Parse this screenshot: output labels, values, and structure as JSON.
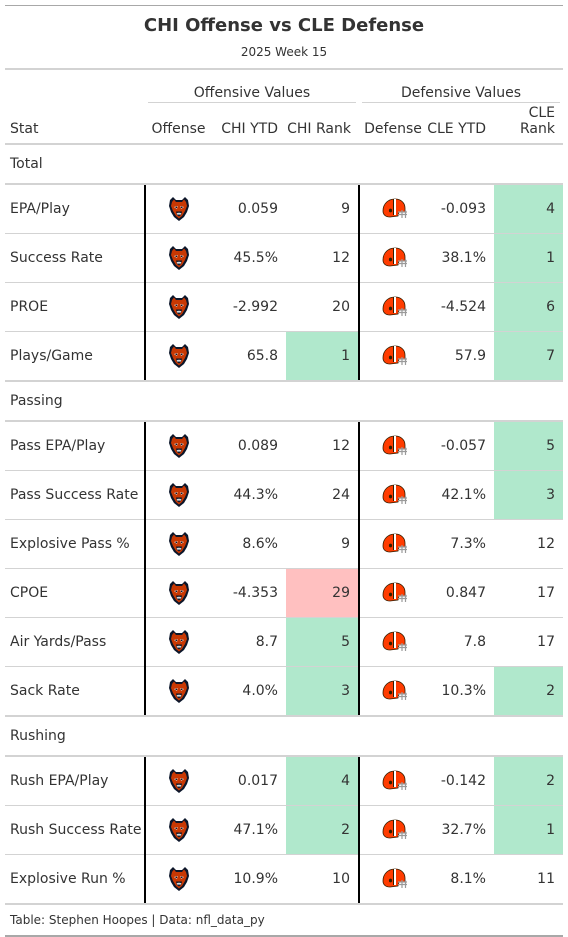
{
  "title": "CHI Offense vs CLE Defense",
  "subtitle": "2025 Week 15",
  "spanners": {
    "offense": "Offensive Values",
    "defense": "Defensive Values"
  },
  "columns": {
    "stat": "Stat",
    "offense": "Offense",
    "off_ytd": "CHI YTD",
    "off_rank": "CHI Rank",
    "defense": "Defense",
    "def_ytd": "CLE YTD",
    "def_rank": "CLE Rank"
  },
  "colors": {
    "good": "#b0e8cc",
    "bad": "#ffc0c0",
    "bears_orange": "#c83803",
    "bears_navy": "#0b162a",
    "browns_orange": "#ff3c00",
    "browns_brown": "#311d00"
  },
  "logos": {
    "offense": "chicago-bears-logo",
    "defense": "cleveland-browns-helmet-logo"
  },
  "groups": [
    {
      "label": "Total",
      "rows": [
        {
          "stat": "EPA/Play",
          "off_ytd": "0.059",
          "off_rank": "9",
          "off_hl": "",
          "def_ytd": "-0.093",
          "def_rank": "4",
          "def_hl": "good"
        },
        {
          "stat": "Success Rate",
          "off_ytd": "45.5%",
          "off_rank": "12",
          "off_hl": "",
          "def_ytd": "38.1%",
          "def_rank": "1",
          "def_hl": "good"
        },
        {
          "stat": "PROE",
          "off_ytd": "-2.992",
          "off_rank": "20",
          "off_hl": "",
          "def_ytd": "-4.524",
          "def_rank": "6",
          "def_hl": "good"
        },
        {
          "stat": "Plays/Game",
          "off_ytd": "65.8",
          "off_rank": "1",
          "off_hl": "good",
          "def_ytd": "57.9",
          "def_rank": "7",
          "def_hl": "good"
        }
      ]
    },
    {
      "label": "Passing",
      "rows": [
        {
          "stat": "Pass EPA/Play",
          "off_ytd": "0.089",
          "off_rank": "12",
          "off_hl": "",
          "def_ytd": "-0.057",
          "def_rank": "5",
          "def_hl": "good"
        },
        {
          "stat": "Pass Success Rate",
          "off_ytd": "44.3%",
          "off_rank": "24",
          "off_hl": "",
          "def_ytd": "42.1%",
          "def_rank": "3",
          "def_hl": "good"
        },
        {
          "stat": "Explosive Pass %",
          "off_ytd": "8.6%",
          "off_rank": "9",
          "off_hl": "",
          "def_ytd": "7.3%",
          "def_rank": "12",
          "def_hl": ""
        },
        {
          "stat": "CPOE",
          "off_ytd": "-4.353",
          "off_rank": "29",
          "off_hl": "bad",
          "def_ytd": "0.847",
          "def_rank": "17",
          "def_hl": ""
        },
        {
          "stat": "Air Yards/Pass",
          "off_ytd": "8.7",
          "off_rank": "5",
          "off_hl": "good",
          "def_ytd": "7.8",
          "def_rank": "17",
          "def_hl": ""
        },
        {
          "stat": "Sack Rate",
          "off_ytd": "4.0%",
          "off_rank": "3",
          "off_hl": "good",
          "def_ytd": "10.3%",
          "def_rank": "2",
          "def_hl": "good"
        }
      ]
    },
    {
      "label": "Rushing",
      "rows": [
        {
          "stat": "Rush EPA/Play",
          "off_ytd": "0.017",
          "off_rank": "4",
          "off_hl": "good",
          "def_ytd": "-0.142",
          "def_rank": "2",
          "def_hl": "good"
        },
        {
          "stat": "Rush Success Rate",
          "off_ytd": "47.1%",
          "off_rank": "2",
          "off_hl": "good",
          "def_ytd": "32.7%",
          "def_rank": "1",
          "def_hl": "good"
        },
        {
          "stat": "Explosive Run %",
          "off_ytd": "10.9%",
          "off_rank": "10",
          "off_hl": "",
          "def_ytd": "8.1%",
          "def_rank": "11",
          "def_hl": ""
        }
      ]
    }
  ],
  "footer": "Table: Stephen Hoopes | Data: nfl_data_py"
}
